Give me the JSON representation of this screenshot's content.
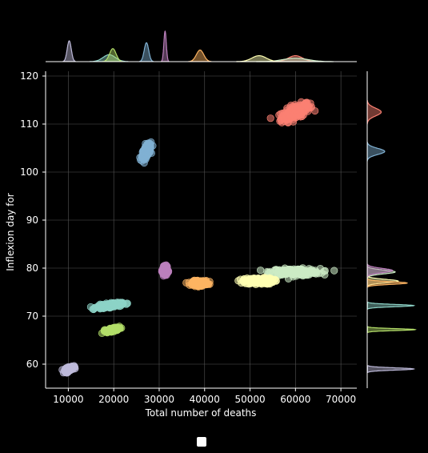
{
  "chart_data": {
    "type": "scatter",
    "title": "",
    "xlabel": "Total number of deaths",
    "ylabel": "Inflexion day for",
    "xlim": [
      5000,
      73500
    ],
    "ylim": [
      55,
      121
    ],
    "xticks": [
      10000,
      20000,
      30000,
      40000,
      50000,
      60000,
      70000
    ],
    "xtick_labels": [
      "10000",
      "20000",
      "30000",
      "40000",
      "50000",
      "60000",
      "70000"
    ],
    "yticks": [
      60,
      70,
      80,
      90,
      100,
      110,
      120
    ],
    "ytick_labels": [
      "60",
      "70",
      "80",
      "90",
      "100",
      "110",
      "120"
    ],
    "grid": true,
    "legend": "bottom-center",
    "marginals": [
      "histogram-kde-top",
      "histogram-kde-right"
    ],
    "series": [
      {
        "color": "#fb8072",
        "x_center": 60000,
        "y_center": 112.5,
        "x_spread": 3500,
        "y_spread": 2.0,
        "tilt": 1
      },
      {
        "color": "#80b1d3",
        "x_center": 27200,
        "y_center": 104.3,
        "x_spread": 1100,
        "y_spread": 1.6,
        "tilt": 1
      },
      {
        "color": "#ccebc5",
        "x_center": 60000,
        "y_center": 79.2,
        "x_spread": 6000,
        "y_spread": 1.0,
        "tilt": 0
      },
      {
        "color": "#ffffb3",
        "x_center": 52000,
        "y_center": 77.3,
        "x_spread": 3500,
        "y_spread": 0.9,
        "tilt": 0
      },
      {
        "color": "#fdb462",
        "x_center": 39000,
        "y_center": 76.9,
        "x_spread": 1800,
        "y_spread": 0.7,
        "tilt": 0
      },
      {
        "color": "#bc80bd",
        "x_center": 31300,
        "y_center": 79.5,
        "x_spread": 600,
        "y_spread": 1.1,
        "tilt": 0
      },
      {
        "color": "#8dd3c7",
        "x_center": 19000,
        "y_center": 72.2,
        "x_spread": 3000,
        "y_spread": 0.6,
        "tilt": 1
      },
      {
        "color": "#b3de69",
        "x_center": 19800,
        "y_center": 67.2,
        "x_spread": 1600,
        "y_spread": 0.5,
        "tilt": 1
      },
      {
        "color": "#bebada",
        "x_center": 10200,
        "y_center": 59.0,
        "x_spread": 1000,
        "y_spread": 0.6,
        "tilt": 1
      }
    ]
  }
}
